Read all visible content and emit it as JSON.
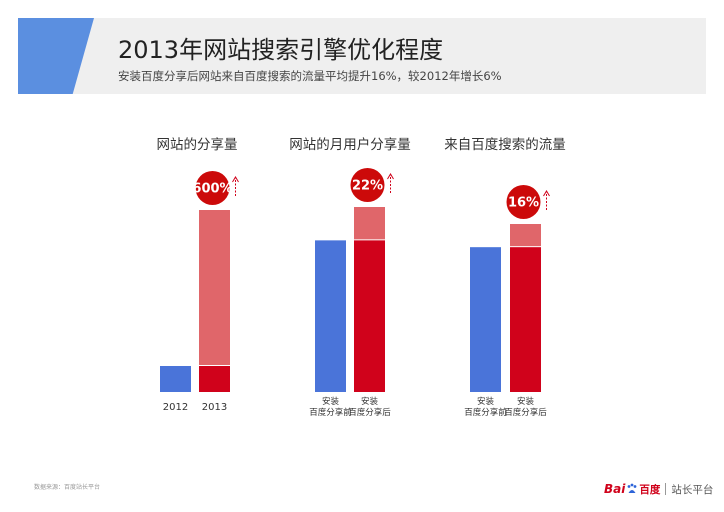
{
  "header": {
    "title": "2013年网站搜索引擎优化程度",
    "subtitle": "安装百度分享后网站来自百度搜索的流量平均提升16%，较2012年增长6%"
  },
  "colors": {
    "accent": "#5b8fe0",
    "header_bg": "#efefef",
    "before": "#4a74d9",
    "after_base": "#d0021b",
    "after_increase": "#e0666a",
    "badge": "#cc0a0a",
    "arrow": "#d0021b"
  },
  "chart_data": [
    {
      "type": "bar",
      "title": "网站的分享量",
      "categories": [
        "2012",
        "2013"
      ],
      "values": [
        1,
        7
      ],
      "base_value": 1,
      "change_label": "600%",
      "trend": "up"
    },
    {
      "type": "bar",
      "title": "网站的月用户分享量",
      "categories": [
        "安装\n百度分享前",
        "安装\n百度分享后"
      ],
      "values": [
        100,
        122
      ],
      "base_value": 100,
      "change_label": "22%",
      "trend": "up"
    },
    {
      "type": "bar",
      "title": "来自百度搜索的流量",
      "categories": [
        "安装\n百度分享前",
        "安装\n百度分享后"
      ],
      "values": [
        100,
        116
      ],
      "base_value": 100,
      "change_label": "16%",
      "trend": "up"
    }
  ],
  "footer": {
    "source": "数据来源：百度站长平台",
    "logo_bai": "Bai",
    "logo_du": "百度",
    "logo_product": "站长平台"
  }
}
